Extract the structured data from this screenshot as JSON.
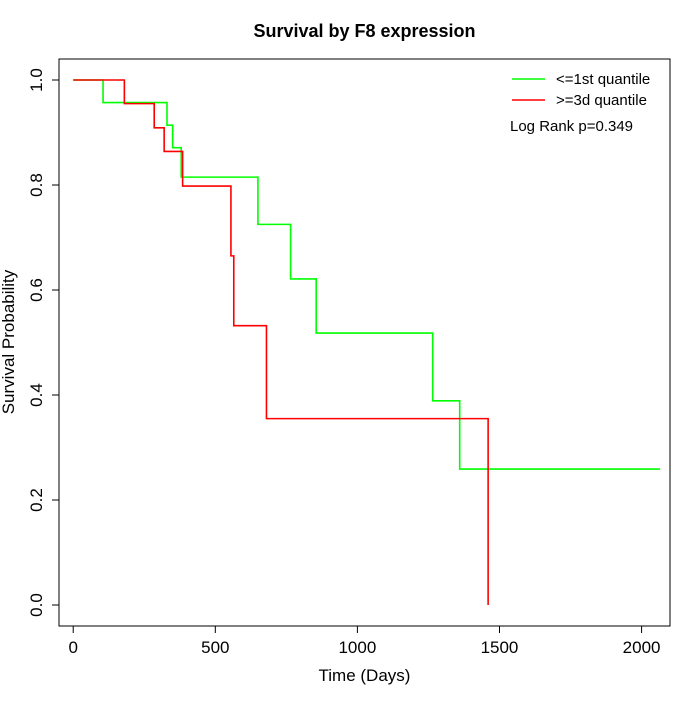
{
  "chart_data": {
    "type": "line",
    "step": "post",
    "title": "Survival by F8 expression",
    "xlabel": "Time (Days)",
    "ylabel": "Survival Probability",
    "xlim": [
      -50,
      2100
    ],
    "ylim": [
      -0.04,
      1.04
    ],
    "xticks": [
      0,
      500,
      1000,
      1500,
      2000
    ],
    "xtick_labels": [
      "0",
      "500",
      "1000",
      "1500",
      "2000"
    ],
    "yticks": [
      0.0,
      0.2,
      0.4,
      0.6,
      0.8,
      1.0
    ],
    "ytick_labels": [
      "0.0",
      "0.2",
      "0.4",
      "0.6",
      "0.8",
      "1.0"
    ],
    "grid": false,
    "legend_position": "top-right",
    "annotation": "Log Rank p=0.349",
    "series": [
      {
        "name": "<=1st quantile",
        "color": "#00ff00",
        "x": [
          0,
          105,
          330,
          350,
          380,
          650,
          765,
          855,
          1265,
          1360,
          2065
        ],
        "y": [
          1.0,
          0.957,
          0.914,
          0.871,
          0.815,
          0.725,
          0.621,
          0.518,
          0.389,
          0.259,
          0.259
        ]
      },
      {
        "name": ">=3d quantile",
        "color": "#ff0000",
        "x": [
          0,
          180,
          285,
          320,
          385,
          555,
          565,
          680,
          1460,
          1460
        ],
        "y": [
          1.0,
          0.955,
          0.909,
          0.864,
          0.798,
          0.665,
          0.532,
          0.355,
          0.355,
          0.0
        ]
      }
    ]
  }
}
